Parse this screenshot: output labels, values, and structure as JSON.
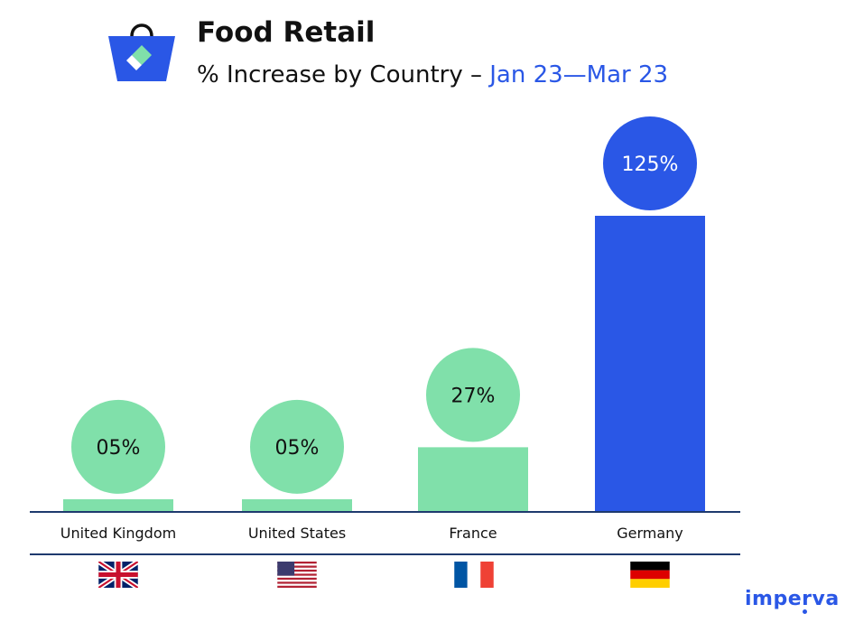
{
  "header": {
    "title": "Food Retail",
    "subtitle_prefix": "% Increase by Country – ",
    "subtitle_period": "Jan 23—Mar 23",
    "icon": "shopping-basket-icon"
  },
  "colors": {
    "green": "#80e0aa",
    "blue": "#2a57e6",
    "baseline": "#1e3a6e",
    "text": "#111111"
  },
  "chart_data": {
    "type": "bar",
    "title": "Food Retail",
    "subtitle": "% Increase by Country – Jan 23—Mar 23",
    "categories": [
      "United Kingdom",
      "United States",
      "France",
      "Germany"
    ],
    "values": [
      5,
      5,
      27,
      125
    ],
    "data_labels": [
      "05%",
      "05%",
      "27%",
      "125%"
    ],
    "bar_colors": [
      "#80e0aa",
      "#80e0aa",
      "#80e0aa",
      "#2a57e6"
    ],
    "ylim": [
      0,
      125
    ],
    "grid": false,
    "legend": "none"
  },
  "flags": [
    "uk-flag-icon",
    "us-flag-icon",
    "france-flag-icon",
    "germany-flag-icon"
  ],
  "footer": {
    "logo": "imperva"
  }
}
